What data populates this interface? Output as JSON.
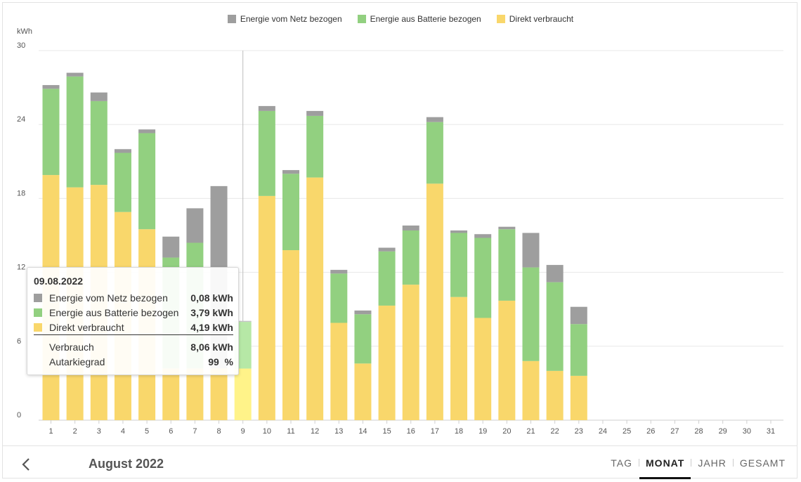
{
  "legend": [
    {
      "label": "Energie vom Netz bezogen",
      "color": "#9e9e9e"
    },
    {
      "label": "Energie aus Batterie bezogen",
      "color": "#92d080"
    },
    {
      "label": "Direkt verbraucht",
      "color": "#f9d76b"
    }
  ],
  "chart_data": {
    "type": "bar",
    "stacked": true,
    "ylabel": "kWh",
    "ylim": [
      0,
      30
    ],
    "yticks": [
      0,
      6,
      12,
      18,
      24,
      30
    ],
    "categories": [
      "1",
      "2",
      "3",
      "4",
      "5",
      "6",
      "7",
      "8",
      "9",
      "10",
      "11",
      "12",
      "13",
      "14",
      "15",
      "16",
      "17",
      "18",
      "19",
      "20",
      "21",
      "22",
      "23",
      "24",
      "25",
      "26",
      "27",
      "28",
      "29",
      "30",
      "31"
    ],
    "series": [
      {
        "name": "Direkt verbraucht",
        "color": "#f9d76b",
        "values": [
          19.9,
          18.9,
          19.1,
          16.9,
          15.5,
          4.2,
          4.2,
          4.2,
          4.19,
          18.2,
          13.8,
          19.7,
          7.9,
          4.6,
          9.3,
          11.0,
          19.2,
          10.0,
          8.3,
          9.7,
          4.8,
          4.0,
          3.6,
          0,
          0,
          0,
          0,
          0,
          0,
          0,
          0
        ]
      },
      {
        "name": "Energie aus Batterie bezogen",
        "color": "#92d080",
        "values": [
          7.0,
          9.0,
          6.8,
          4.8,
          7.8,
          9.0,
          10.2,
          0,
          3.79,
          6.9,
          6.2,
          5.0,
          4.0,
          4.0,
          4.4,
          4.4,
          5.0,
          5.2,
          6.5,
          5.8,
          7.6,
          7.2,
          4.2,
          0,
          0,
          0,
          0,
          0,
          0,
          0,
          0
        ]
      },
      {
        "name": "Energie vom Netz bezogen",
        "color": "#9e9e9e",
        "values": [
          0.3,
          0.3,
          0.7,
          0.3,
          0.3,
          1.7,
          2.8,
          14.8,
          0.08,
          0.4,
          0.3,
          0.4,
          0.3,
          0.3,
          0.3,
          0.4,
          0.4,
          0.2,
          0.3,
          0.2,
          2.8,
          1.4,
          1.4,
          0,
          0,
          0,
          0,
          0,
          0,
          0,
          0
        ]
      }
    ],
    "highlight_category": "9",
    "highlight_colors": {
      "Direkt verbraucht": "#fff389",
      "Energie aus Batterie bezogen": "#b6e8a6",
      "Energie vom Netz bezogen": "#c4c4c4"
    },
    "grid": true
  },
  "tooltip": {
    "date": "09.08.2022",
    "rows": [
      {
        "label": "Energie vom Netz bezogen",
        "value": "0,08 kWh",
        "color": "#9e9e9e"
      },
      {
        "label": "Energie aus Batterie bezogen",
        "value": "3,79 kWh",
        "color": "#92d080"
      },
      {
        "label": "Direkt verbraucht",
        "value": "4,19 kWh",
        "color": "#f9d76b"
      }
    ],
    "summary": [
      {
        "label": "Verbrauch",
        "value": "8,06 kWh"
      },
      {
        "label": "Autarkiegrad",
        "value": "99  %"
      }
    ]
  },
  "footer": {
    "period_label": "August 2022",
    "tabs": [
      {
        "label": "TAG",
        "active": false
      },
      {
        "label": "MONAT",
        "active": true
      },
      {
        "label": "JAHR",
        "active": false
      },
      {
        "label": "GESAMT",
        "active": false
      }
    ]
  }
}
